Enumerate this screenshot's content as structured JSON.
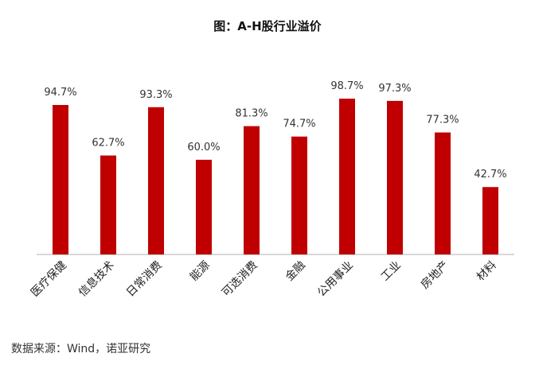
{
  "title": "图：A-H股行业溢价",
  "source": "数据来源：Wind，诺亚研究",
  "colors": {
    "bar": "#c00000",
    "axis": "#b0b0b0",
    "label": "#333333"
  },
  "chart_data": {
    "type": "bar",
    "title": "图：A-H股行业溢价",
    "categories": [
      "医疗保健",
      "信息技术",
      "日常消费",
      "能源",
      "可选消费",
      "金融",
      "公用事业",
      "工业",
      "房地产",
      "材料"
    ],
    "values": [
      94.7,
      62.7,
      93.3,
      60.0,
      81.3,
      74.7,
      98.7,
      97.3,
      77.3,
      42.7
    ],
    "data_labels": [
      "94.7%",
      "62.7%",
      "93.3%",
      "60.0%",
      "81.3%",
      "74.7%",
      "98.7%",
      "97.3%",
      "77.3%",
      "42.7%"
    ],
    "ylim": [
      0,
      100
    ],
    "grid": false,
    "legend": "none"
  }
}
